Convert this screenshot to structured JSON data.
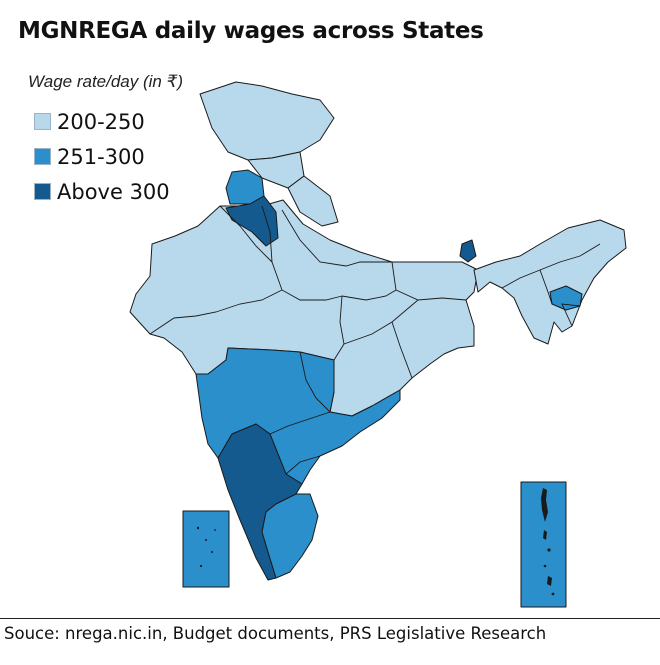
{
  "title": "MGNREGA daily wages across States",
  "legend": {
    "title": "Wage rate/day (in ₹)",
    "items": [
      {
        "label": "200-250",
        "color": "#b8d8ec"
      },
      {
        "label": "251-300",
        "color": "#2b8fcc"
      },
      {
        "label": "Above 300",
        "color": "#155a8e"
      }
    ]
  },
  "source": "Souce: nrega.nic.in, Budget documents, PRS Legislative Research",
  "colors": {
    "border": "#1a1a1a",
    "background": "#ffffff"
  },
  "map": {
    "regions": [
      {
        "name": "Jammu & Kashmir / Ladakh",
        "category": "200-250"
      },
      {
        "name": "Himachal Pradesh",
        "category": "200-250"
      },
      {
        "name": "Punjab",
        "category": "251-300"
      },
      {
        "name": "Haryana",
        "category": "Above 300"
      },
      {
        "name": "Uttarakhand",
        "category": "200-250"
      },
      {
        "name": "Rajasthan",
        "category": "200-250"
      },
      {
        "name": "Uttar Pradesh",
        "category": "200-250"
      },
      {
        "name": "Gujarat",
        "category": "200-250"
      },
      {
        "name": "Madhya Pradesh",
        "category": "200-250"
      },
      {
        "name": "Bihar",
        "category": "200-250"
      },
      {
        "name": "Jharkhand",
        "category": "200-250"
      },
      {
        "name": "West Bengal",
        "category": "200-250"
      },
      {
        "name": "Chhattisgarh",
        "category": "200-250"
      },
      {
        "name": "Odisha",
        "category": "200-250"
      },
      {
        "name": "Maharashtra",
        "category": "251-300"
      },
      {
        "name": "Telangana",
        "category": "251-300"
      },
      {
        "name": "Andhra Pradesh",
        "category": "251-300"
      },
      {
        "name": "Goa",
        "category": "Above 300"
      },
      {
        "name": "Karnataka",
        "category": "Above 300"
      },
      {
        "name": "Kerala",
        "category": "Above 300"
      },
      {
        "name": "Tamil Nadu",
        "category": "251-300"
      },
      {
        "name": "Sikkim",
        "category": "Above 300"
      },
      {
        "name": "North-east States",
        "category": "200-250"
      },
      {
        "name": "Meghalaya",
        "category": "251-300"
      },
      {
        "name": "Lakshadweep",
        "category": "251-300"
      },
      {
        "name": "Andaman & Nicobar Islands",
        "category": "251-300"
      }
    ]
  }
}
